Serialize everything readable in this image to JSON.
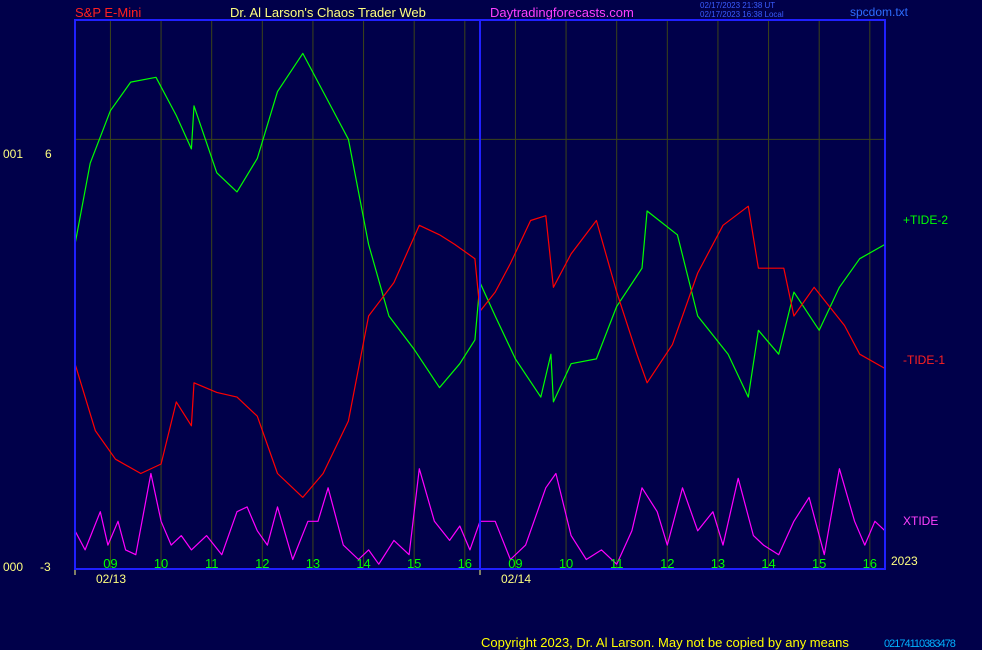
{
  "header": {
    "symbol": "S&P E-Mini",
    "title": "Dr. Al Larson's Chaos Trader Web",
    "site": "Daytradingforecasts.com",
    "stamp_line1": "02/17/2023 21:38 UT",
    "stamp_line2": "02/17/2023 16:38 Local",
    "file": "spcdom.txt"
  },
  "y_axis": {
    "top_left": "001",
    "top_value": "6",
    "bottom_left": "000",
    "bottom_value": "-3"
  },
  "year_label": "2023",
  "copyright": "Copyright 2023, Dr. Al Larson. May not be copied by any means",
  "copyright_tail": "02174110383478",
  "colors": {
    "background": "#00004a",
    "frame": "#2020ff",
    "grid": "#3c4418",
    "tide2": "#00ff00",
    "tide1": "#ff0000",
    "xtide": "#ff00ff",
    "hour_labels": "#00ff00",
    "date_labels": "#ffff80"
  },
  "chart_data": {
    "type": "line",
    "x_unit": "hour index (0 = 08:00 on 02/13; hourly labels, 18 labeled hours across two sessions)",
    "x_range": [
      0,
      16
    ],
    "y_range": [
      -3,
      8.5
    ],
    "grid": true,
    "reference_line_value": 6,
    "x_hour_ticks": [
      {
        "x": 0.7,
        "label": "09"
      },
      {
        "x": 1.7,
        "label": "10"
      },
      {
        "x": 2.7,
        "label": "11"
      },
      {
        "x": 3.7,
        "label": "12"
      },
      {
        "x": 4.7,
        "label": "13"
      },
      {
        "x": 5.7,
        "label": "14"
      },
      {
        "x": 6.7,
        "label": "15"
      },
      {
        "x": 7.7,
        "label": "16"
      },
      {
        "x": 8.7,
        "label": "09"
      },
      {
        "x": 9.7,
        "label": "10"
      },
      {
        "x": 10.7,
        "label": "11"
      },
      {
        "x": 11.7,
        "label": "12"
      },
      {
        "x": 12.7,
        "label": "13"
      },
      {
        "x": 13.7,
        "label": "14"
      },
      {
        "x": 14.7,
        "label": "15"
      },
      {
        "x": 15.7,
        "label": "16"
      }
    ],
    "x_date_ticks": [
      {
        "x": 0.0,
        "label": "02/13"
      },
      {
        "x": 8.0,
        "label": "02/14"
      }
    ],
    "series": [
      {
        "name": "+TIDE-2",
        "color": "#00ff00",
        "points": [
          [
            0.0,
            3.8
          ],
          [
            0.3,
            5.5
          ],
          [
            0.7,
            6.6
          ],
          [
            1.1,
            7.2
          ],
          [
            1.6,
            7.3
          ],
          [
            2.0,
            6.5
          ],
          [
            2.3,
            5.8
          ],
          [
            2.35,
            6.7
          ],
          [
            2.8,
            5.3
          ],
          [
            3.2,
            4.9
          ],
          [
            3.6,
            5.6
          ],
          [
            4.0,
            7.0
          ],
          [
            4.5,
            7.8
          ],
          [
            4.9,
            7.0
          ],
          [
            5.4,
            6.0
          ],
          [
            5.8,
            3.8
          ],
          [
            6.2,
            2.3
          ],
          [
            6.7,
            1.6
          ],
          [
            7.2,
            0.8
          ],
          [
            7.6,
            1.3
          ],
          [
            7.9,
            1.8
          ],
          [
            8.0,
            3.0
          ],
          [
            8.3,
            2.3
          ],
          [
            8.7,
            1.4
          ],
          [
            9.2,
            0.6
          ],
          [
            9.4,
            1.5
          ],
          [
            9.45,
            0.5
          ],
          [
            9.8,
            1.3
          ],
          [
            10.3,
            1.4
          ],
          [
            10.7,
            2.5
          ],
          [
            11.2,
            3.3
          ],
          [
            11.3,
            4.5
          ],
          [
            11.9,
            4.0
          ],
          [
            12.3,
            2.3
          ],
          [
            12.9,
            1.5
          ],
          [
            13.3,
            0.6
          ],
          [
            13.5,
            2.0
          ],
          [
            13.9,
            1.5
          ],
          [
            14.2,
            2.8
          ],
          [
            14.7,
            2.0
          ],
          [
            15.1,
            2.9
          ],
          [
            15.5,
            3.5
          ],
          [
            16.0,
            3.8
          ]
        ]
      },
      {
        "name": "-TIDE-1",
        "color": "#ff0000",
        "points": [
          [
            0.0,
            1.3
          ],
          [
            0.4,
            -0.1
          ],
          [
            0.8,
            -0.7
          ],
          [
            1.3,
            -1.0
          ],
          [
            1.7,
            -0.8
          ],
          [
            2.0,
            0.5
          ],
          [
            2.3,
            0.0
          ],
          [
            2.35,
            0.9
          ],
          [
            2.8,
            0.7
          ],
          [
            3.2,
            0.6
          ],
          [
            3.6,
            0.2
          ],
          [
            4.0,
            -1.0
          ],
          [
            4.5,
            -1.5
          ],
          [
            4.9,
            -1.0
          ],
          [
            5.4,
            0.1
          ],
          [
            5.8,
            2.3
          ],
          [
            6.3,
            3.0
          ],
          [
            6.8,
            4.2
          ],
          [
            7.2,
            4.0
          ],
          [
            7.5,
            3.8
          ],
          [
            7.9,
            3.5
          ],
          [
            8.0,
            2.4
          ],
          [
            8.3,
            2.8
          ],
          [
            8.6,
            3.4
          ],
          [
            9.0,
            4.3
          ],
          [
            9.3,
            4.4
          ],
          [
            9.45,
            2.9
          ],
          [
            9.8,
            3.6
          ],
          [
            10.3,
            4.3
          ],
          [
            10.7,
            2.8
          ],
          [
            11.1,
            1.5
          ],
          [
            11.3,
            0.9
          ],
          [
            11.8,
            1.7
          ],
          [
            12.3,
            3.2
          ],
          [
            12.8,
            4.2
          ],
          [
            13.3,
            4.6
          ],
          [
            13.5,
            3.3
          ],
          [
            14.0,
            3.3
          ],
          [
            14.2,
            2.3
          ],
          [
            14.6,
            2.9
          ],
          [
            15.2,
            2.1
          ],
          [
            15.5,
            1.5
          ],
          [
            16.0,
            1.2
          ]
        ]
      },
      {
        "name": "XTIDE",
        "color": "#ff00ff",
        "points": [
          [
            0.0,
            -2.2
          ],
          [
            0.2,
            -2.6
          ],
          [
            0.5,
            -1.8
          ],
          [
            0.65,
            -2.5
          ],
          [
            0.85,
            -2.0
          ],
          [
            1.0,
            -2.6
          ],
          [
            1.2,
            -2.7
          ],
          [
            1.5,
            -1.0
          ],
          [
            1.7,
            -2.0
          ],
          [
            1.9,
            -2.5
          ],
          [
            2.1,
            -2.3
          ],
          [
            2.3,
            -2.6
          ],
          [
            2.6,
            -2.3
          ],
          [
            2.9,
            -2.7
          ],
          [
            3.2,
            -1.8
          ],
          [
            3.4,
            -1.7
          ],
          [
            3.6,
            -2.2
          ],
          [
            3.8,
            -2.5
          ],
          [
            4.0,
            -1.7
          ],
          [
            4.3,
            -2.8
          ],
          [
            4.6,
            -2.0
          ],
          [
            4.8,
            -2.0
          ],
          [
            5.0,
            -1.3
          ],
          [
            5.3,
            -2.5
          ],
          [
            5.6,
            -2.8
          ],
          [
            5.8,
            -2.6
          ],
          [
            6.0,
            -2.9
          ],
          [
            6.3,
            -2.4
          ],
          [
            6.6,
            -2.7
          ],
          [
            6.8,
            -0.9
          ],
          [
            7.1,
            -2.0
          ],
          [
            7.4,
            -2.4
          ],
          [
            7.6,
            -2.1
          ],
          [
            7.8,
            -2.6
          ],
          [
            8.0,
            -2.0
          ],
          [
            8.3,
            -2.0
          ],
          [
            8.6,
            -2.8
          ],
          [
            8.9,
            -2.5
          ],
          [
            9.3,
            -1.3
          ],
          [
            9.5,
            -1.0
          ],
          [
            9.8,
            -2.3
          ],
          [
            10.1,
            -2.8
          ],
          [
            10.4,
            -2.6
          ],
          [
            10.7,
            -2.9
          ],
          [
            11.0,
            -2.2
          ],
          [
            11.2,
            -1.3
          ],
          [
            11.5,
            -1.8
          ],
          [
            11.7,
            -2.5
          ],
          [
            12.0,
            -1.3
          ],
          [
            12.3,
            -2.2
          ],
          [
            12.6,
            -1.8
          ],
          [
            12.8,
            -2.5
          ],
          [
            13.1,
            -1.1
          ],
          [
            13.4,
            -2.3
          ],
          [
            13.6,
            -2.5
          ],
          [
            13.9,
            -2.7
          ],
          [
            14.2,
            -2.0
          ],
          [
            14.5,
            -1.5
          ],
          [
            14.8,
            -2.7
          ],
          [
            15.1,
            -0.9
          ],
          [
            15.4,
            -2.0
          ],
          [
            15.6,
            -2.5
          ],
          [
            15.8,
            -2.0
          ],
          [
            16.0,
            -2.2
          ]
        ]
      }
    ]
  }
}
